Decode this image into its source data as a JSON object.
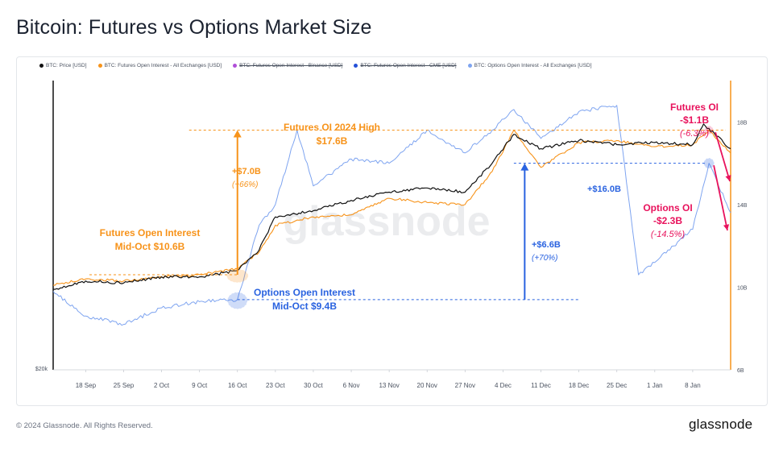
{
  "page_title": "Bitcoin: Futures vs Options Market Size",
  "footer": {
    "copyright": "© 2024 Glassnode. All Rights Reserved.",
    "logo": "glassnode"
  },
  "watermark": "glassnode",
  "legend": [
    {
      "label": "BTC: Price [USD]",
      "color": "#111111",
      "struck": false
    },
    {
      "label": "BTC: Futures Open Interest - All Exchanges [USD]",
      "color": "#f7931a",
      "struck": false
    },
    {
      "label": "BTC: Futures Open Interest - Binance [USD]",
      "color": "#b04fd8",
      "struck": true
    },
    {
      "label": "BTC: Futures Open Interest - CME [USD]",
      "color": "#2450d8",
      "struck": true
    },
    {
      "label": "BTC: Options Open Interest - All Exchanges [USD]",
      "color": "#7ea4f0",
      "struck": false
    }
  ],
  "chart_data": {
    "type": "line",
    "x_labels": [
      "18 Sep",
      "25 Sep",
      "2 Oct",
      "9 Oct",
      "16 Oct",
      "23 Oct",
      "30 Oct",
      "6 Nov",
      "13 Nov",
      "20 Nov",
      "27 Nov",
      "4 Dec",
      "11 Dec",
      "18 Dec",
      "25 Dec",
      "1 Jan",
      "8 Jan"
    ],
    "x_start": "2023-09-12",
    "x_end": "2024-01-15",
    "left_axis": {
      "label": "$20k",
      "scale": "log"
    },
    "right_axis": {
      "ticks": [
        "18B",
        "14B",
        "10B",
        "6B"
      ],
      "values": [
        18,
        14,
        10,
        6
      ],
      "ylim": [
        6,
        20
      ],
      "unit": "B USD"
    },
    "series": [
      {
        "name": "BTC: Price [USD]",
        "color": "#111111",
        "axis": "right-equivalent",
        "dates": [
          "2023-09-12",
          "2023-09-18",
          "2023-09-25",
          "2023-10-02",
          "2023-10-09",
          "2023-10-16",
          "2023-10-20",
          "2023-10-23",
          "2023-10-30",
          "2023-11-06",
          "2023-11-13",
          "2023-11-20",
          "2023-11-27",
          "2023-12-02",
          "2023-12-06",
          "2023-12-11",
          "2023-12-18",
          "2023-12-25",
          "2024-01-01",
          "2024-01-08",
          "2024-01-10",
          "2024-01-15"
        ],
        "values": [
          9.9,
          10.3,
          10.2,
          10.5,
          10.5,
          10.8,
          11.8,
          13.4,
          13.7,
          14.2,
          14.6,
          14.8,
          14.6,
          16.0,
          17.4,
          16.7,
          17.1,
          16.9,
          17.0,
          16.9,
          17.9,
          16.7
        ]
      },
      {
        "name": "BTC: Futures Open Interest - All Exchanges [USD]",
        "color": "#f7931a",
        "axis": "right",
        "dates": [
          "2023-09-12",
          "2023-09-18",
          "2023-09-25",
          "2023-10-02",
          "2023-10-09",
          "2023-10-16",
          "2023-10-20",
          "2023-10-23",
          "2023-10-30",
          "2023-11-06",
          "2023-11-13",
          "2023-11-20",
          "2023-11-27",
          "2023-12-02",
          "2023-12-06",
          "2023-12-11",
          "2023-12-18",
          "2023-12-25",
          "2024-01-01",
          "2024-01-08",
          "2024-01-11",
          "2024-01-15"
        ],
        "values": [
          10.1,
          10.4,
          10.3,
          10.5,
          10.6,
          10.9,
          11.7,
          13.0,
          13.4,
          13.5,
          14.3,
          14.1,
          14.0,
          15.6,
          17.6,
          15.8,
          17.0,
          17.1,
          16.8,
          16.9,
          17.6,
          16.5
        ]
      },
      {
        "name": "BTC: Options Open Interest - All Exchanges [USD]",
        "color": "#7ea4f0",
        "axis": "right",
        "dates": [
          "2023-09-12",
          "2023-09-18",
          "2023-09-25",
          "2023-10-02",
          "2023-10-09",
          "2023-10-16",
          "2023-10-20",
          "2023-10-23",
          "2023-10-27",
          "2023-10-30",
          "2023-11-06",
          "2023-11-13",
          "2023-11-20",
          "2023-11-27",
          "2023-12-02",
          "2023-12-06",
          "2023-12-11",
          "2023-12-18",
          "2023-12-25",
          "2023-12-29",
          "2024-01-01",
          "2024-01-08",
          "2024-01-11",
          "2024-01-15"
        ],
        "values": [
          9.8,
          8.6,
          8.2,
          9.0,
          9.3,
          9.4,
          13.0,
          14.0,
          17.6,
          14.9,
          16.2,
          16.0,
          17.6,
          16.5,
          17.6,
          18.6,
          17.2,
          18.5,
          18.8,
          10.6,
          11.2,
          12.8,
          16.0,
          13.6
        ]
      }
    ],
    "annotations": [
      {
        "text": [
          "Futures OI 2024 High",
          "$17.6B"
        ],
        "color": "#f7931a"
      },
      {
        "text": [
          "Futures Open Interest",
          "Mid-Oct $10.6B"
        ],
        "color": "#f7931a"
      },
      {
        "text": [
          "+$7.0B",
          "(+66%)"
        ],
        "color": "#f7931a"
      },
      {
        "text": [
          "Options Open Interest",
          "Mid-Oct $9.4B"
        ],
        "color": "#2a63e0"
      },
      {
        "text": [
          "+$6.6B",
          "(+70%)"
        ],
        "color": "#2a63e0"
      },
      {
        "text": [
          "+$16.0B"
        ],
        "color": "#2a63e0"
      },
      {
        "text": [
          "Futures OI",
          "-$1.1B",
          "(-6.3%)"
        ],
        "color": "#e8125c"
      },
      {
        "text": [
          "Options OI",
          "-$2.3B",
          "(-14.5%)"
        ],
        "color": "#e8125c"
      }
    ]
  }
}
